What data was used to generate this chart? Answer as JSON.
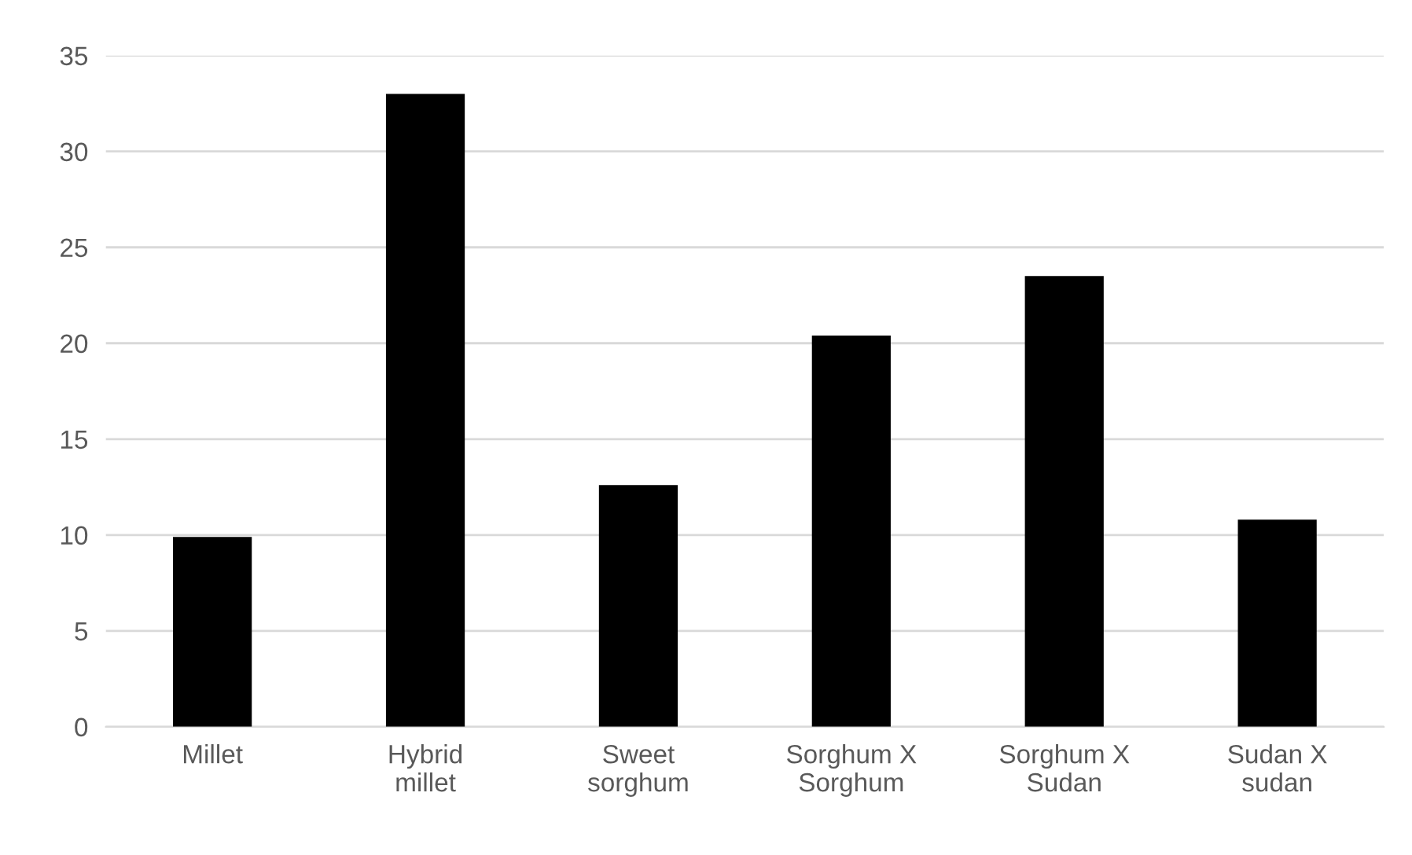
{
  "chart_data": {
    "type": "bar",
    "categories": [
      "Millet",
      "Hybrid millet",
      "Sweet sorghum",
      "Sorghum X Sorghum",
      "Sorghum X Sudan",
      "Sudan X sudan"
    ],
    "values": [
      9.9,
      33.0,
      12.6,
      20.4,
      23.5,
      10.8
    ],
    "color": "#000000",
    "ylim": [
      0,
      35
    ],
    "yticks": [
      0,
      5,
      10,
      15,
      20,
      25,
      30,
      35
    ],
    "grid": "y"
  }
}
